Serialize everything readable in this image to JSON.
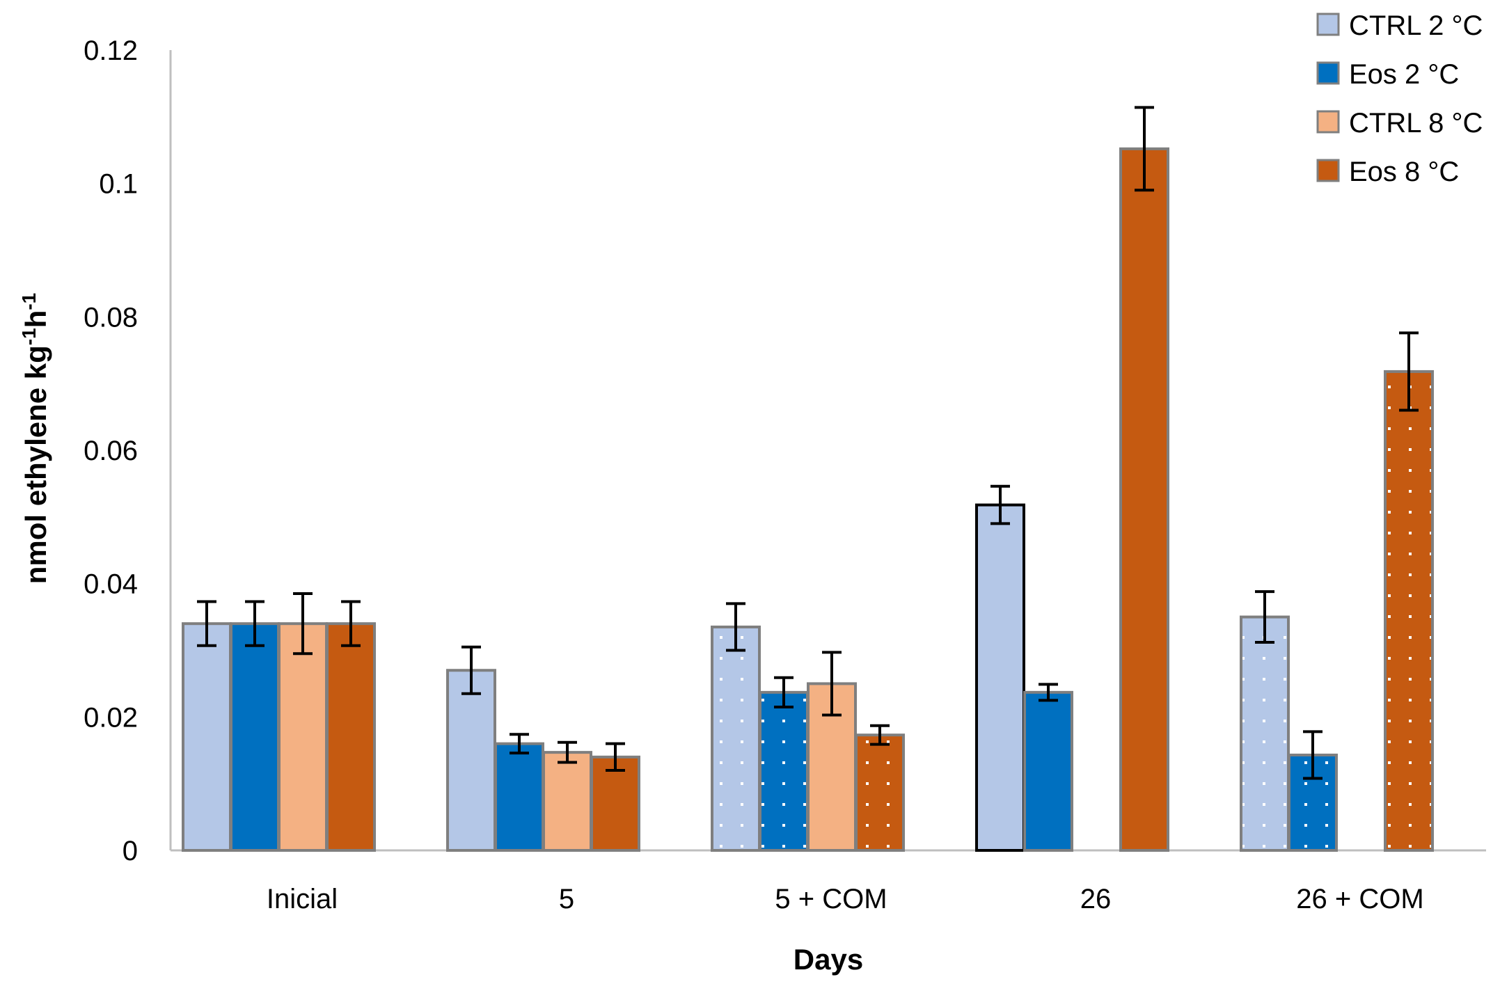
{
  "chart_data": {
    "type": "bar",
    "title": "",
    "xlabel": "Days",
    "ylabel": "nmol ethylene  kg-1h-1",
    "ylabel_parts": [
      "nmol ethylene  kg",
      "-1",
      "h",
      "-1"
    ],
    "ylim": [
      0,
      0.12
    ],
    "yticks": [
      0,
      0.02,
      0.04,
      0.06,
      0.08,
      0.1,
      0.12
    ],
    "ytick_labels": [
      "0",
      "0.02",
      "0.04",
      "0.06",
      "0.08",
      "0.1",
      "0.12"
    ],
    "categories": [
      "Inicial",
      "5",
      "5 + COM",
      "26",
      "26 + COM"
    ],
    "series": [
      {
        "name": "CTRL 2 °C",
        "color": "#b4c7e7",
        "values": [
          0.034,
          0.027,
          0.0335,
          0.0518,
          0.035
        ],
        "errors": [
          0.0033,
          0.0035,
          0.0035,
          0.0028,
          0.0038
        ],
        "dotted": [
          false,
          false,
          true,
          false,
          true
        ]
      },
      {
        "name": "Eos 2 °C",
        "color": "#0070c0",
        "values": [
          0.034,
          0.016,
          0.0237,
          0.0237,
          0.0143
        ],
        "errors": [
          0.0033,
          0.0014,
          0.0022,
          0.0012,
          0.0035
        ],
        "dotted": [
          false,
          false,
          true,
          false,
          true
        ]
      },
      {
        "name": "CTRL  8 °C",
        "color": "#f4b183",
        "values": [
          0.034,
          0.0147,
          0.025,
          null,
          null
        ],
        "errors": [
          0.0045,
          0.0015,
          0.0047,
          null,
          null
        ],
        "dotted": [
          false,
          false,
          false,
          false,
          false
        ]
      },
      {
        "name": "Eos  8 °C",
        "color": "#c55a11",
        "values": [
          0.034,
          0.014,
          0.0173,
          0.1052,
          0.0718
        ],
        "errors": [
          0.0033,
          0.002,
          0.0014,
          0.0062,
          0.0058
        ],
        "dotted": [
          false,
          false,
          true,
          false,
          true
        ]
      }
    ],
    "legend_position": "top-right",
    "grid": false
  }
}
